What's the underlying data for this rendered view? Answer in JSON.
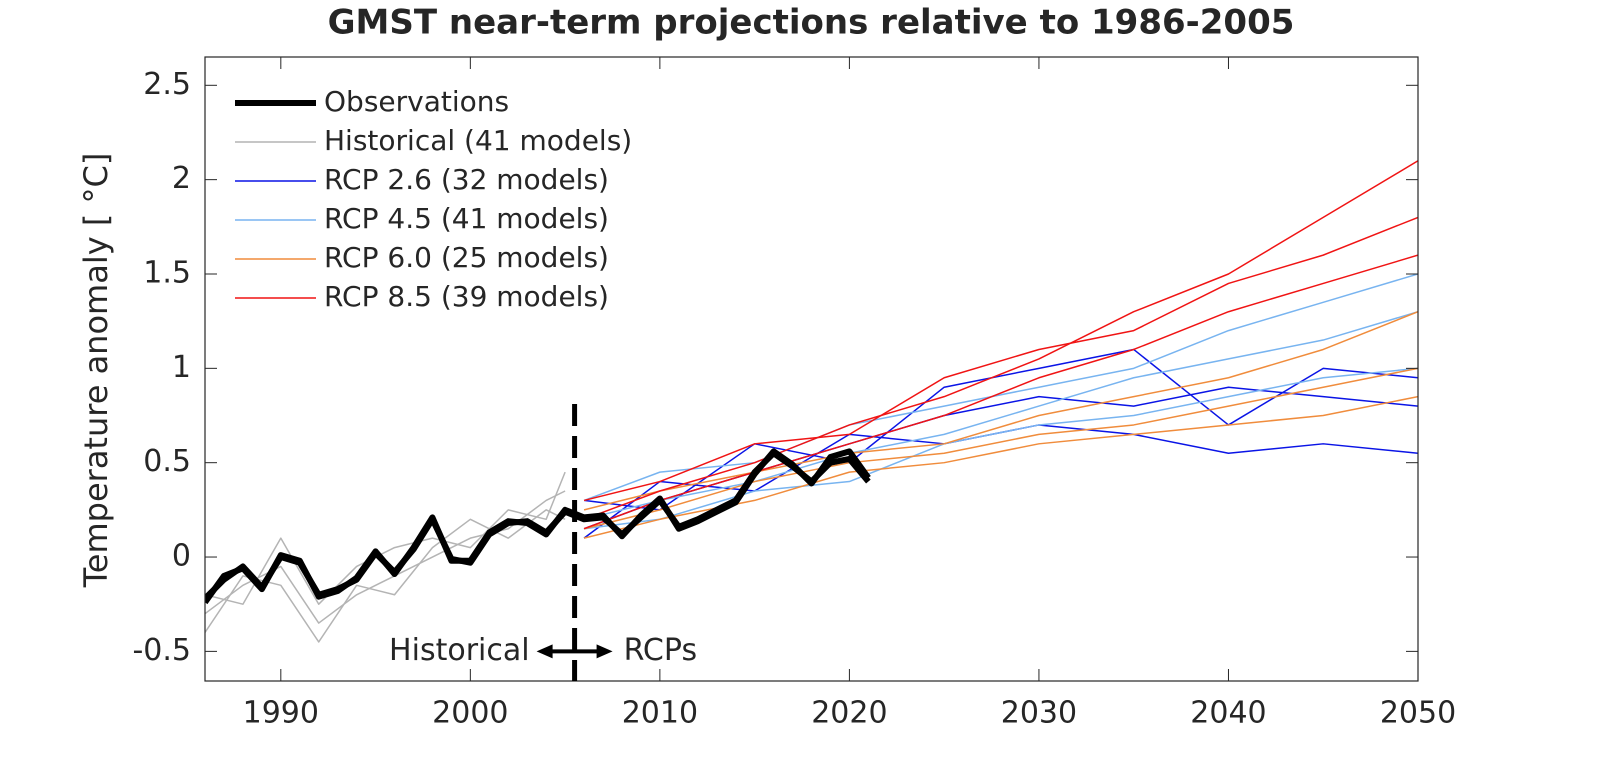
{
  "chart_data": {
    "type": "line",
    "title": "GMST near-term projections relative to 1986-2005",
    "ylabel": "Temperature anomaly  [ °C]",
    "xlim": [
      1986,
      2050
    ],
    "ylim": [
      -0.657,
      2.65
    ],
    "xticks": [
      1990,
      2000,
      2010,
      2020,
      2030,
      2040,
      2050
    ],
    "yticks": [
      -0.5,
      0,
      0.5,
      1,
      1.5,
      2,
      2.5
    ],
    "grid": false,
    "legend": "upper left",
    "divider_x": 2005.5,
    "annotations": [
      "Historical",
      "RCPs"
    ],
    "series": [
      {
        "name": "Observations",
        "color": "#000000",
        "linewidth": 6,
        "x": [
          1986,
          1987,
          1988,
          1989,
          1990,
          1991,
          1992,
          1993,
          1994,
          1995,
          1996,
          1997,
          1998,
          1999,
          2000,
          2001,
          2002,
          2003,
          2004,
          2005,
          2006,
          2007,
          2008,
          2009,
          2010,
          2011,
          2012,
          2013,
          2014,
          2015,
          2016,
          2017,
          2018,
          2019,
          2020,
          2021
        ],
        "runs": [
          [
            -0.24,
            -0.1,
            -0.06,
            -0.17,
            0.01,
            -0.02,
            -0.21,
            -0.18,
            -0.11,
            0.03,
            -0.09,
            0.05,
            0.21,
            -0.02,
            -0.02,
            0.13,
            0.19,
            0.18,
            0.12,
            0.25,
            0.21,
            0.22,
            0.11,
            0.22,
            0.31,
            0.15,
            0.19,
            0.24,
            0.29,
            0.44,
            0.56,
            0.49,
            0.39,
            0.53,
            0.56,
            0.42
          ],
          [
            -0.22,
            -0.12,
            -0.05,
            -0.16,
            0.0,
            -0.03,
            -0.2,
            -0.17,
            -0.12,
            0.02,
            -0.08,
            0.04,
            0.2,
            -0.01,
            -0.03,
            0.12,
            0.18,
            0.19,
            0.13,
            0.24,
            0.2,
            0.21,
            0.12,
            0.21,
            0.3,
            0.16,
            0.2,
            0.25,
            0.3,
            0.45,
            0.55,
            0.48,
            0.4,
            0.5,
            0.52,
            0.4
          ]
        ]
      },
      {
        "name": "Historical (41 models)",
        "color": "#b4b4b4",
        "linewidth": 1.5,
        "x": [
          1986,
          1988,
          1990,
          1992,
          1994,
          1996,
          1998,
          2000,
          2002,
          2004,
          2005
        ],
        "runs": [
          [
            -0.3,
            -0.15,
            -0.05,
            -0.35,
            -0.2,
            -0.1,
            0.0,
            0.1,
            0.15,
            0.3,
            0.35
          ],
          [
            -0.2,
            -0.25,
            0.1,
            -0.25,
            -0.05,
            0.05,
            0.1,
            0.05,
            0.25,
            0.2,
            0.45
          ],
          [
            -0.4,
            -0.1,
            -0.15,
            -0.45,
            -0.15,
            -0.2,
            0.05,
            0.2,
            0.1,
            0.25,
            0.2
          ]
        ]
      },
      {
        "name": "RCP 2.6 (32 models)",
        "color": "#0a14e6",
        "linewidth": 1.5,
        "x": [
          2006,
          2010,
          2015,
          2020,
          2025,
          2030,
          2035,
          2040,
          2045,
          2050
        ],
        "runs": [
          [
            0.15,
            0.3,
            0.45,
            0.6,
            0.75,
            0.85,
            0.8,
            0.9,
            0.85,
            0.8
          ],
          [
            0.3,
            0.25,
            0.6,
            0.5,
            0.9,
            1.0,
            1.1,
            0.7,
            1.0,
            0.95
          ],
          [
            0.1,
            0.4,
            0.35,
            0.65,
            0.6,
            0.7,
            0.65,
            0.55,
            0.6,
            0.55
          ]
        ]
      },
      {
        "name": "RCP 4.5 (41 models)",
        "color": "#78b4f0",
        "linewidth": 1.5,
        "x": [
          2006,
          2010,
          2015,
          2020,
          2025,
          2030,
          2035,
          2040,
          2045,
          2050
        ],
        "runs": [
          [
            0.2,
            0.3,
            0.4,
            0.55,
            0.65,
            0.8,
            0.95,
            1.05,
            1.15,
            1.3
          ],
          [
            0.3,
            0.45,
            0.5,
            0.7,
            0.8,
            0.9,
            1.0,
            1.2,
            1.35,
            1.5
          ],
          [
            0.15,
            0.2,
            0.35,
            0.4,
            0.6,
            0.7,
            0.75,
            0.85,
            0.95,
            1.0
          ]
        ]
      },
      {
        "name": "RCP 6.0 (25 models)",
        "color": "#f08c3c",
        "linewidth": 1.5,
        "x": [
          2006,
          2010,
          2015,
          2020,
          2025,
          2030,
          2035,
          2040,
          2045,
          2050
        ],
        "runs": [
          [
            0.15,
            0.25,
            0.4,
            0.5,
            0.55,
            0.65,
            0.7,
            0.8,
            0.9,
            1.0
          ],
          [
            0.25,
            0.35,
            0.45,
            0.55,
            0.6,
            0.75,
            0.85,
            0.95,
            1.1,
            1.3
          ],
          [
            0.1,
            0.2,
            0.3,
            0.45,
            0.5,
            0.6,
            0.65,
            0.7,
            0.75,
            0.85
          ]
        ]
      },
      {
        "name": "RCP 8.5 (39 models)",
        "color": "#f01414",
        "linewidth": 1.5,
        "x": [
          2006,
          2010,
          2015,
          2020,
          2025,
          2030,
          2035,
          2040,
          2045,
          2050
        ],
        "runs": [
          [
            0.2,
            0.35,
            0.5,
            0.7,
            0.85,
            1.05,
            1.3,
            1.5,
            1.8,
            2.1
          ],
          [
            0.3,
            0.4,
            0.6,
            0.65,
            0.95,
            1.1,
            1.2,
            1.45,
            1.6,
            1.8
          ],
          [
            0.15,
            0.3,
            0.45,
            0.6,
            0.75,
            0.95,
            1.1,
            1.3,
            1.45,
            1.6
          ]
        ]
      }
    ]
  }
}
